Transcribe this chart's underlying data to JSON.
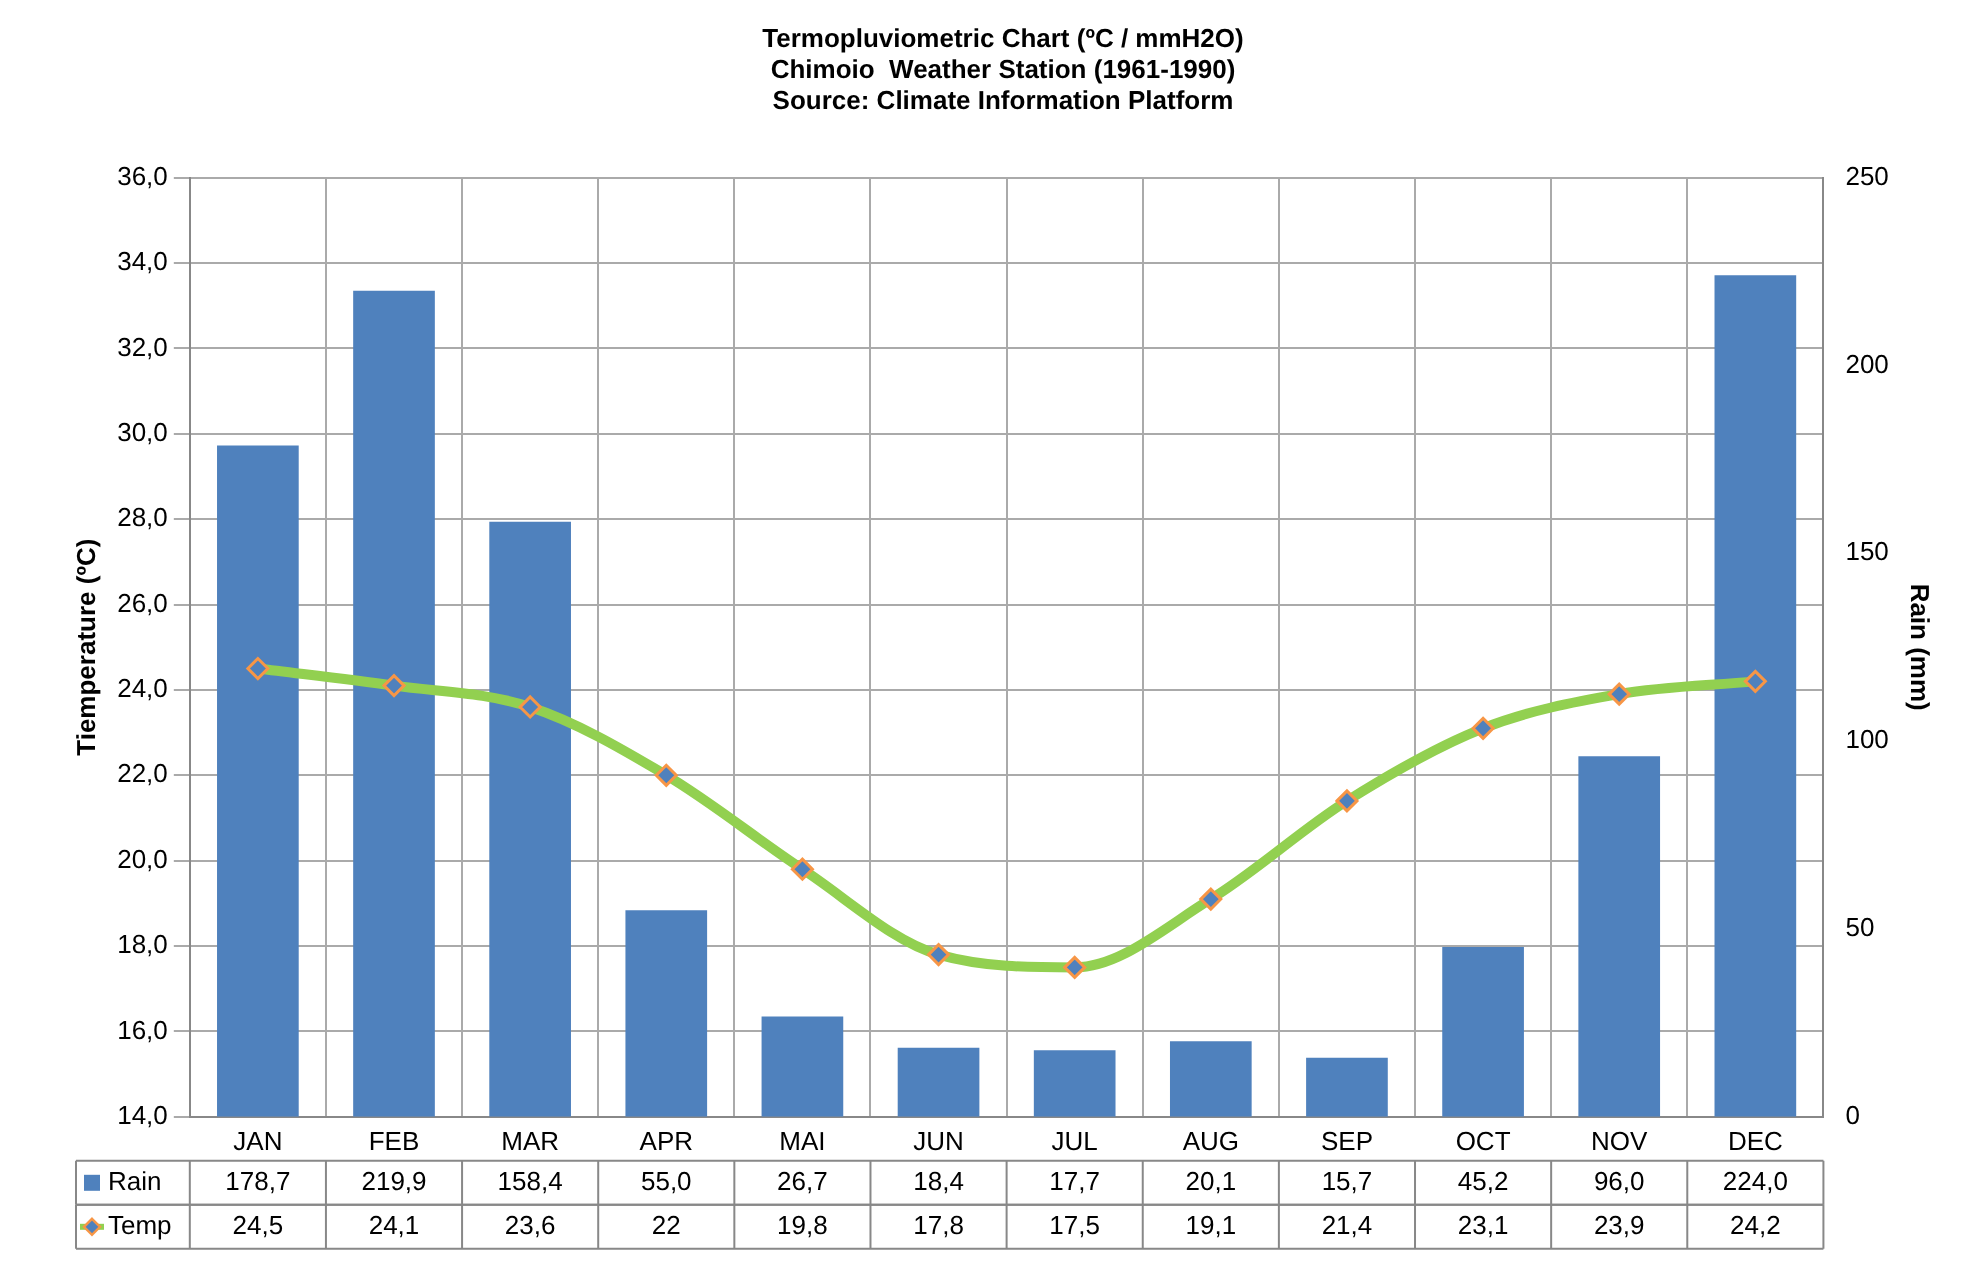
{
  "chart_data": {
    "type": "bar",
    "title": "Termopluviometric Chart (ºC / mmH2O)",
    "subtitle": "Chimoio  Weather Station (1961-1990)",
    "annotations": [
      "Source: Climate Information Platform"
    ],
    "categories": [
      "JAN",
      "FEB",
      "MAR",
      "APR",
      "MAI",
      "JUN",
      "JUL",
      "AUG",
      "SEP",
      "OCT",
      "NOV",
      "DEC"
    ],
    "series": [
      {
        "name": "Rain",
        "axis": "y2",
        "color": "#4f81bd",
        "values": [
          178.7,
          219.9,
          158.4,
          55.0,
          26.7,
          18.4,
          17.7,
          20.1,
          15.7,
          45.2,
          96.0,
          224.0
        ],
        "value_labels": [
          "178,7",
          "219,9",
          "158,4",
          "55,0",
          "26,7",
          "18,4",
          "17,7",
          "20,1",
          "15,7",
          "45,2",
          "96,0",
          "224,0"
        ]
      },
      {
        "name": "Temp",
        "type": "line",
        "color": "#92d050",
        "marker": "diamond",
        "values": [
          24.5,
          24.1,
          23.6,
          22,
          19.8,
          17.8,
          17.5,
          19.1,
          21.4,
          23.1,
          23.9,
          24.2
        ],
        "value_labels": [
          "24,5",
          "24,1",
          "23,6",
          "22",
          "19,8",
          "17,8",
          "17,5",
          "19,1",
          "21,4",
          "23,1",
          "23,9",
          "24,2"
        ]
      }
    ],
    "ylabel": "Tiemperature (ºC)",
    "y2label": "Rain (mm)",
    "ylim": [
      14,
      36
    ],
    "yticks": [
      {
        "value": 14,
        "label": "14,0"
      },
      {
        "value": 16,
        "label": "16,0"
      },
      {
        "value": 18,
        "label": "18,0"
      },
      {
        "value": 20,
        "label": "20,0"
      },
      {
        "value": 22,
        "label": "22,0"
      },
      {
        "value": 24,
        "label": "24,0"
      },
      {
        "value": 26,
        "label": "26,0"
      },
      {
        "value": 28,
        "label": "28,0"
      },
      {
        "value": 30,
        "label": "30,0"
      },
      {
        "value": 32,
        "label": "32,0"
      },
      {
        "value": 34,
        "label": "34,0"
      },
      {
        "value": 36,
        "label": "36,0"
      }
    ],
    "y2lim": [
      0,
      250
    ],
    "y2ticks": [
      0,
      50,
      100,
      150,
      200,
      250
    ],
    "grid": true,
    "legend": "bottom left",
    "data_labels": true
  }
}
